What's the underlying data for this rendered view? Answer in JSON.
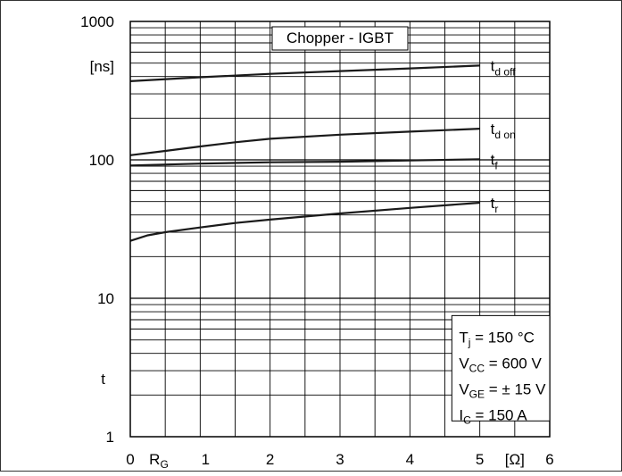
{
  "chart_data": {
    "type": "line",
    "title": "Chopper - IGBT",
    "xlabel": "R",
    "xlabel_sub": "G",
    "x_unit": "[Ω]",
    "ylabel": "t",
    "y_unit": "[ns]",
    "y_scale": "log",
    "xlim": [
      0,
      6
    ],
    "ylim": [
      1,
      1000
    ],
    "x_ticks": [
      "0",
      "1",
      "2",
      "3",
      "4",
      "5",
      "6"
    ],
    "y_ticks": [
      "1",
      "10",
      "100",
      "1000"
    ],
    "grid": true,
    "series": [
      {
        "name": "t",
        "sub": "d off",
        "x": [
          0,
          1,
          2,
          3,
          4,
          5
        ],
        "y": [
          370,
          395,
          418,
          438,
          458,
          480
        ]
      },
      {
        "name": "t",
        "sub": "d on",
        "x": [
          0,
          0.5,
          1,
          1.5,
          2,
          3,
          4,
          5
        ],
        "y": [
          108,
          116,
          125,
          134,
          142,
          152,
          160,
          168
        ]
      },
      {
        "name": "t",
        "sub": "f",
        "x": [
          0,
          1,
          2,
          3,
          4,
          5
        ],
        "y": [
          91,
          94,
          96,
          97,
          99,
          101
        ]
      },
      {
        "name": "t",
        "sub": "r",
        "x": [
          0,
          0.25,
          0.5,
          1,
          1.5,
          2,
          3,
          4,
          5
        ],
        "y": [
          26,
          28.5,
          30,
          32.5,
          35,
          37,
          41,
          45,
          49
        ]
      }
    ],
    "conditions": [
      {
        "sym": "T",
        "sub": "j",
        "text": "= 150 °C"
      },
      {
        "sym": "V",
        "sub": "CC",
        "text": "= 600 V"
      },
      {
        "sym": "V",
        "sub": "GE",
        "text": "= ± 15 V"
      },
      {
        "sym": "I",
        "sub": "C",
        "text": "= 150 A"
      }
    ]
  }
}
